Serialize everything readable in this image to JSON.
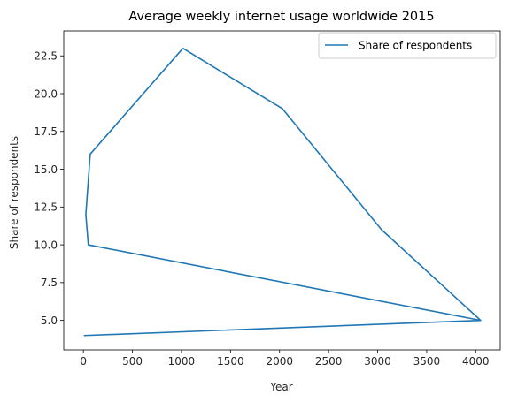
{
  "chart_data": {
    "type": "line",
    "title": "Average weekly internet usage worldwide 2015",
    "xlabel": "Year",
    "ylabel": "Share of respondents",
    "xlim": [
      -200,
      4250
    ],
    "ylim": [
      3.05,
      24.15
    ],
    "xticks": [
      0,
      500,
      1000,
      1500,
      2000,
      2500,
      3000,
      3500,
      4000
    ],
    "yticks": [
      5.0,
      7.5,
      10.0,
      12.5,
      15.0,
      17.5,
      20.0,
      22.5
    ],
    "xtick_labels": [
      "0",
      "500",
      "1000",
      "1500",
      "2000",
      "2500",
      "3000",
      "3500",
      "4000"
    ],
    "ytick_labels": [
      "5.0",
      "7.5",
      "10.0",
      "12.5",
      "15.0",
      "17.5",
      "20.0",
      "22.5"
    ],
    "legend_position": "upper right",
    "grid": false,
    "series": [
      {
        "name": "Share of respondents",
        "color": "#1f77b4",
        "x": [
          4050,
          50,
          25,
          70,
          1015,
          2030,
          3040,
          4050,
          5
        ],
        "y": [
          5,
          10,
          12,
          16,
          23,
          19,
          11,
          5,
          4
        ]
      }
    ]
  }
}
